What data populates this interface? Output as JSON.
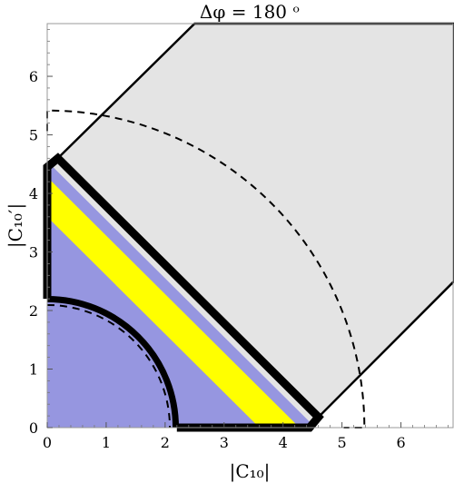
{
  "chart_data": {
    "type": "area",
    "title": "Δφ = 180 ᵒ",
    "xlabel": "|C₁₀|",
    "ylabel": "|C₁₀′|",
    "xlim": [
      0,
      6.9
    ],
    "ylim": [
      0,
      6.9
    ],
    "xticks": [
      "0",
      "1",
      "2",
      "3",
      "4",
      "5",
      "6"
    ],
    "yticks": [
      "0",
      "1",
      "2",
      "3",
      "4",
      "5",
      "6"
    ],
    "grid": false,
    "colors": {
      "gray_region": "#e4e4e4",
      "blue_region": "#9696e0",
      "yellow_band": "#ffff00",
      "outline": "#000000"
    },
    "regions": [
      {
        "id": "gray-allowed-region",
        "fill": "gray_region",
        "points": [
          [
            0,
            4.42
          ],
          [
            0.2,
            4.62
          ],
          [
            2.5,
            6.9
          ],
          [
            6.9,
            6.9
          ],
          [
            6.9,
            2.5
          ],
          [
            4.62,
            0.2
          ],
          [
            4.42,
            0
          ],
          [
            4.35,
            0
          ],
          [
            0,
            4.35
          ]
        ]
      },
      {
        "id": "blue-triangle-region",
        "fill": "blue_region",
        "points": [
          [
            0,
            0
          ],
          [
            4.55,
            0
          ],
          [
            0,
            4.55
          ]
        ]
      },
      {
        "id": "yellow-band",
        "fill": "yellow_band",
        "points": [
          [
            3.6,
            0
          ],
          [
            4.28,
            0
          ],
          [
            0,
            4.28
          ],
          [
            0,
            3.6
          ]
        ]
      }
    ],
    "curves": [
      {
        "id": "thick-outer-boundary",
        "style": "thick",
        "points": [
          [
            0,
            2.2
          ],
          [
            0,
            4.45
          ],
          [
            0.18,
            4.6
          ],
          [
            4.6,
            0.18
          ],
          [
            4.45,
            0
          ],
          [
            2.2,
            0
          ]
        ]
      },
      {
        "id": "thick-inner-arc",
        "style": "thick-arc",
        "radius": 2.18
      },
      {
        "id": "dashed-inner-arc",
        "style": "dashed-arc",
        "radius": 2.08
      },
      {
        "id": "dashed-outer-arc",
        "style": "dashed-arc",
        "radius": 5.38,
        "cap": 0.35
      }
    ]
  }
}
